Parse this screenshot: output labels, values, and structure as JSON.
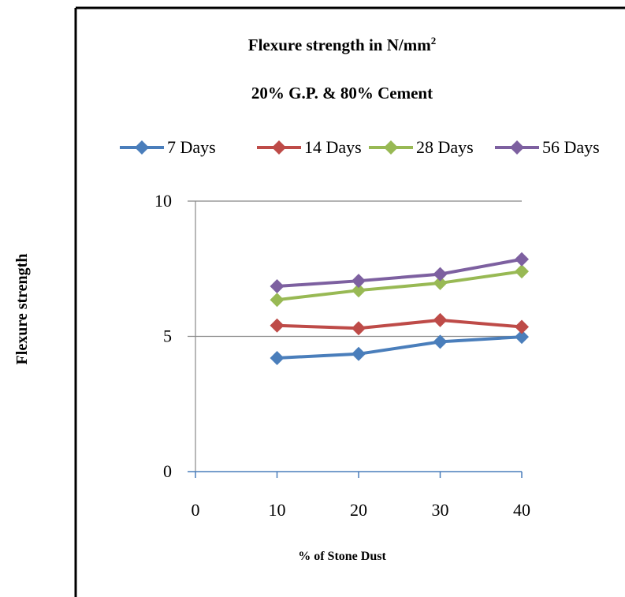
{
  "chart_data": {
    "type": "line",
    "title": "Flexure strength in N/mm",
    "title_superscript": "2",
    "subtitle": "20% G.P. & 80% Cement",
    "xlabel": "% of Stone Dust",
    "ylabel": "Flexure strength",
    "x": [
      10,
      20,
      30,
      40
    ],
    "xlim": [
      0,
      40
    ],
    "x_ticks": [
      "0",
      "10",
      "20",
      "30",
      "40"
    ],
    "ylim": [
      0,
      10
    ],
    "y_ticks": [
      "0",
      "5",
      "10"
    ],
    "grid": "horizontal",
    "legend_position": "top",
    "series": [
      {
        "name": "7 Days",
        "color": "#4a7ebb",
        "values": [
          4.2,
          4.35,
          4.8,
          4.98
        ]
      },
      {
        "name": "14 Days",
        "color": "#be4b48",
        "values": [
          5.4,
          5.3,
          5.6,
          5.35
        ]
      },
      {
        "name": "28 Days",
        "color": "#98b954",
        "values": [
          6.35,
          6.7,
          6.97,
          7.4
        ]
      },
      {
        "name": "56 Days",
        "color": "#7d60a0",
        "values": [
          6.85,
          7.05,
          7.3,
          7.85
        ]
      }
    ]
  }
}
